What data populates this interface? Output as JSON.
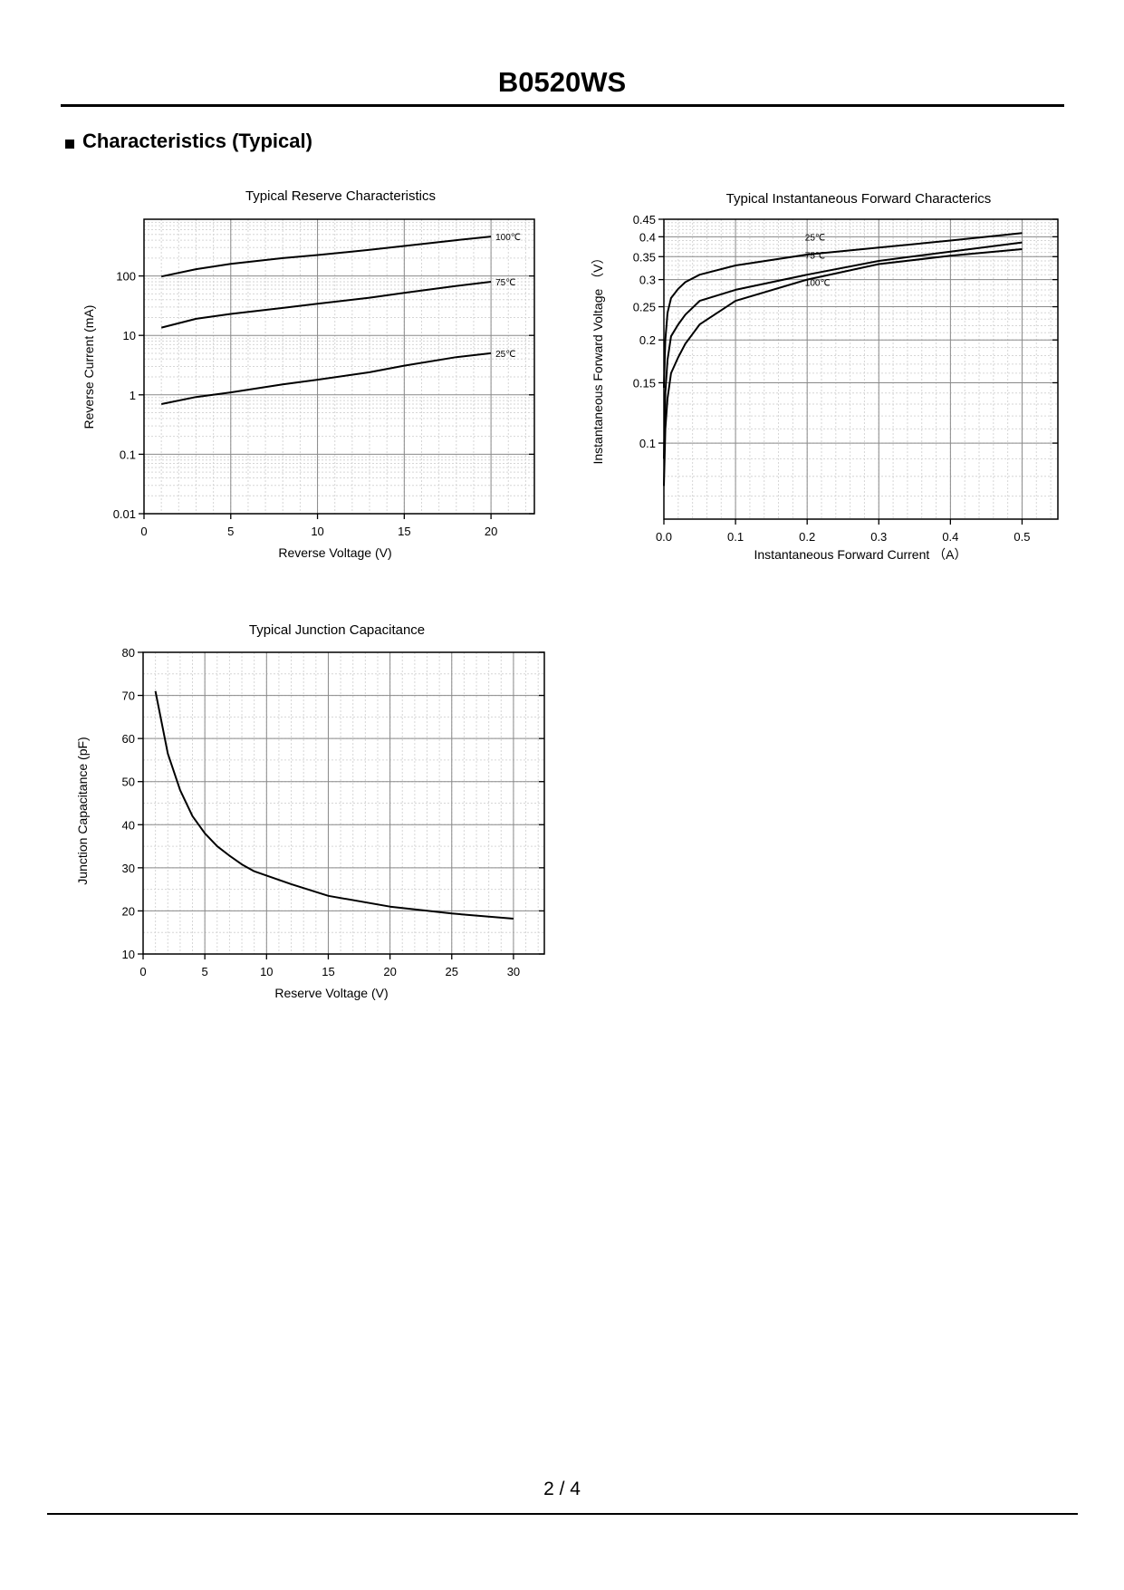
{
  "header": {
    "title": "B0520WS"
  },
  "section": {
    "bullet": "■",
    "title": "Characteristics (Typical)"
  },
  "footer": {
    "page": "2 / 4"
  },
  "chart_data": [
    {
      "type": "line",
      "title": "Typical Reserve Characteristics",
      "xlabel": "Reverse Voltage (V)",
      "ylabel": "Reverse Current (mA)",
      "xscale": "linear",
      "yscale": "log",
      "xlim": [
        0,
        22.5
      ],
      "ylim": [
        0.01,
        900
      ],
      "xticks": [
        0,
        5,
        10,
        15,
        20
      ],
      "xtick_labels": [
        "0",
        "5",
        "10",
        "15",
        "20"
      ],
      "yticks": [
        0.01,
        0.1,
        1,
        10,
        100
      ],
      "ytick_labels": [
        "0.01",
        "0.1",
        "1",
        "10",
        "100"
      ],
      "grid": true,
      "series": [
        {
          "name": "100℃",
          "x": [
            1,
            3,
            5,
            8,
            10,
            13,
            15,
            18,
            20
          ],
          "y": [
            98,
            130,
            160,
            200,
            225,
            275,
            320,
            400,
            460
          ]
        },
        {
          "name": "75℃",
          "x": [
            1,
            3,
            5,
            8,
            10,
            13,
            15,
            18,
            20
          ],
          "y": [
            13.5,
            19,
            23,
            29,
            34,
            43,
            52,
            68,
            80
          ]
        },
        {
          "name": "25℃",
          "x": [
            1,
            3,
            5,
            8,
            10,
            13,
            15,
            18,
            20
          ],
          "y": [
            0.7,
            0.92,
            1.1,
            1.5,
            1.8,
            2.4,
            3.1,
            4.3,
            5.0
          ]
        }
      ]
    },
    {
      "type": "line",
      "title": "Typical Instantaneous Forward Characterics",
      "xlabel": "Instantaneous Forward Current （A）",
      "ylabel": "Instantaneous Forward Voltage （V）",
      "xscale": "linear",
      "yscale": "log",
      "xlim": [
        0,
        0.55
      ],
      "ylim": [
        0.06,
        0.45
      ],
      "xticks": [
        0,
        0.1,
        0.2,
        0.3,
        0.4,
        0.5
      ],
      "xtick_labels": [
        "0.0",
        "0.1",
        "0.2",
        "0.3",
        "0.4",
        "0.5"
      ],
      "yticks": [
        0.1,
        0.15,
        0.2,
        0.25,
        0.3,
        0.35,
        0.4,
        0.45
      ],
      "ytick_labels": [
        "0.1",
        "0.15",
        "0.2",
        "0.25",
        "0.3",
        "0.35",
        "0.4",
        "0.45"
      ],
      "grid": true,
      "series": [
        {
          "name": "25℃",
          "x": [
            0,
            0.002,
            0.005,
            0.01,
            0.02,
            0.03,
            0.05,
            0.1,
            0.2,
            0.3,
            0.4,
            0.5
          ],
          "y": [
            0.145,
            0.2,
            0.24,
            0.265,
            0.282,
            0.295,
            0.31,
            0.33,
            0.355,
            0.372,
            0.39,
            0.41
          ]
        },
        {
          "name": "75℃",
          "x": [
            0,
            0.002,
            0.005,
            0.01,
            0.02,
            0.03,
            0.05,
            0.1,
            0.2,
            0.3,
            0.4,
            0.5
          ],
          "y": [
            0.09,
            0.14,
            0.175,
            0.205,
            0.222,
            0.237,
            0.26,
            0.28,
            0.31,
            0.34,
            0.362,
            0.385
          ]
        },
        {
          "name": "100℃",
          "x": [
            0,
            0.002,
            0.005,
            0.01,
            0.02,
            0.03,
            0.05,
            0.1,
            0.2,
            0.3,
            0.4,
            0.5
          ],
          "y": [
            0.075,
            0.11,
            0.135,
            0.16,
            0.178,
            0.195,
            0.222,
            0.26,
            0.3,
            0.333,
            0.352,
            0.368
          ]
        }
      ]
    },
    {
      "type": "line",
      "title": "Typical Junction Capacitance",
      "xlabel": "Reserve Voltage (V)",
      "ylabel": "Junction Capacitance (pF)",
      "xscale": "linear",
      "yscale": "linear",
      "xlim": [
        0,
        32.5
      ],
      "ylim": [
        10,
        80
      ],
      "xticks": [
        0,
        5,
        10,
        15,
        20,
        25,
        30
      ],
      "xtick_labels": [
        "0",
        "5",
        "10",
        "15",
        "20",
        "25",
        "30"
      ],
      "yticks": [
        10,
        20,
        30,
        40,
        50,
        60,
        70,
        80
      ],
      "ytick_labels": [
        "10",
        "20",
        "30",
        "40",
        "50",
        "60",
        "70",
        "80"
      ],
      "grid": true,
      "series": [
        {
          "name": "",
          "x": [
            1,
            2,
            3,
            4,
            5,
            6,
            7,
            8,
            9,
            10,
            12,
            15,
            20,
            25,
            30
          ],
          "y": [
            71,
            56.5,
            48,
            42,
            38,
            35,
            32.8,
            30.8,
            29.2,
            28.2,
            26.2,
            23.5,
            21,
            19.4,
            18.2
          ]
        }
      ]
    }
  ]
}
